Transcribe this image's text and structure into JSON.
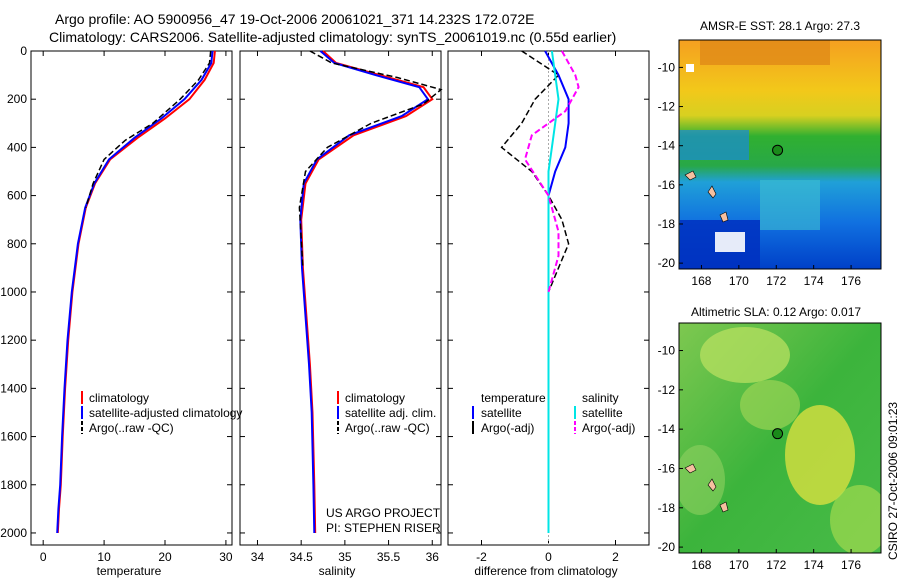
{
  "header": {
    "line1": "Argo profile: AO 5900956_47 19-Oct-2006 20061021_371 14.232S 172.072E",
    "line2": "Climatology: CARS2006. Satellite-adjusted climatology: synTS_20061019.nc (0.55d earlier)"
  },
  "credit": "CSIRO 27-Oct-2006 09:01:23",
  "project": {
    "line1": "US ARGO PROJECT",
    "line2": "PI: STEPHEN RISER"
  },
  "colors": {
    "climatology": "#ff0000",
    "satellite": "#0000ff",
    "argo": "#000000",
    "salinity_satellite": "#00e5e5",
    "salinity_argo": "#ff00ff",
    "map_marker": "#1a8a1a"
  },
  "chart_data": [
    {
      "id": "temperature",
      "type": "line",
      "xlabel": "temperature",
      "ylabel": "",
      "xlim": [
        -2,
        31
      ],
      "ylim": [
        2050,
        0
      ],
      "xticks": [
        0,
        10,
        20,
        30
      ],
      "yticks": [
        0,
        200,
        400,
        600,
        800,
        1000,
        1200,
        1400,
        1600,
        1800,
        2000
      ],
      "legend": [
        "climatology",
        "satellite-adjusted climatology",
        "Argo(..raw -QC)"
      ],
      "series": [
        {
          "name": "climatology",
          "x": [
            28.2,
            28.0,
            26.5,
            24.0,
            20.0,
            15.5,
            11.0,
            8.5,
            7.0,
            5.8,
            4.8,
            4.1,
            3.6,
            3.2,
            2.9,
            2.6,
            2.4
          ],
          "y": [
            0,
            50,
            120,
            200,
            280,
            360,
            450,
            550,
            650,
            800,
            1000,
            1200,
            1400,
            1600,
            1800,
            1900,
            2000
          ]
        },
        {
          "name": "satellite-adjusted climatology",
          "x": [
            27.8,
            27.6,
            26.0,
            23.2,
            19.4,
            15.0,
            10.8,
            8.4,
            6.9,
            5.7,
            4.7,
            4.0,
            3.5,
            3.1,
            2.8,
            2.5,
            2.3
          ],
          "y": [
            0,
            50,
            120,
            200,
            280,
            360,
            450,
            550,
            650,
            800,
            1000,
            1200,
            1400,
            1600,
            1800,
            1900,
            2000
          ]
        },
        {
          "name": "Argo(..raw -QC)",
          "x": [
            27.5,
            27.3,
            25.5,
            22.5,
            18.0,
            13.5,
            10.0,
            8.2,
            7.0
          ],
          "y": [
            0,
            50,
            120,
            200,
            300,
            370,
            450,
            550,
            650
          ]
        }
      ]
    },
    {
      "id": "salinity",
      "type": "line",
      "xlabel": "salinity",
      "ylabel": "",
      "xlim": [
        33.8,
        36.1
      ],
      "ylim": [
        2050,
        0
      ],
      "xticks": [
        34,
        34.5,
        35,
        35.5,
        36
      ],
      "legend": [
        "climatology",
        "satellite adj. clim.",
        "Argo(..raw -QC)"
      ],
      "series": [
        {
          "name": "climatology",
          "x": [
            34.75,
            34.9,
            35.4,
            35.9,
            36.0,
            35.7,
            35.1,
            34.7,
            34.55,
            34.5,
            34.52,
            34.56,
            34.6,
            34.63,
            34.65,
            34.66
          ],
          "y": [
            0,
            50,
            100,
            150,
            200,
            270,
            350,
            450,
            550,
            700,
            900,
            1100,
            1300,
            1500,
            1800,
            2000
          ]
        },
        {
          "name": "satellite adj. clim.",
          "x": [
            34.72,
            34.88,
            35.35,
            35.85,
            35.95,
            35.65,
            35.05,
            34.68,
            34.53,
            34.49,
            34.51,
            34.55,
            34.59,
            34.62,
            34.64,
            34.65
          ],
          "y": [
            0,
            50,
            100,
            150,
            200,
            270,
            350,
            450,
            550,
            700,
            900,
            1100,
            1300,
            1500,
            1800,
            2000
          ]
        },
        {
          "name": "Argo(..raw -QC)",
          "x": [
            34.6,
            34.85,
            35.6,
            36.1,
            35.9,
            35.3,
            34.8,
            34.55,
            34.48,
            34.52
          ],
          "y": [
            0,
            50,
            110,
            160,
            220,
            300,
            400,
            500,
            650,
            900
          ]
        }
      ]
    },
    {
      "id": "difference",
      "type": "line",
      "xlabel": "difference from climatology",
      "ylabel": "",
      "xlim": [
        -3,
        3
      ],
      "ylim": [
        2050,
        0
      ],
      "xticks": [
        -2,
        0,
        2
      ],
      "legend_temperature": {
        "title": "temperature",
        "items": [
          "satellite",
          "Argo(-adj)"
        ]
      },
      "legend_salinity": {
        "title": "salinity",
        "items": [
          "satellite",
          "Argo(-adj)"
        ]
      },
      "series": [
        {
          "name": "temperature satellite",
          "x": [
            -0.1,
            0.3,
            0.6,
            0.6,
            0.5,
            0.2,
            0.0,
            0.0,
            0.0,
            0.0
          ],
          "y": [
            0,
            100,
            200,
            300,
            400,
            500,
            600,
            800,
            1200,
            2000
          ]
        },
        {
          "name": "temperature Argo(-adj)",
          "x": [
            -0.8,
            0.3,
            -0.4,
            -0.8,
            -1.4,
            -0.5,
            0.0,
            0.4,
            0.6,
            0.3,
            0.0
          ],
          "y": [
            0,
            100,
            200,
            300,
            400,
            500,
            600,
            700,
            800,
            900,
            1000
          ]
        },
        {
          "name": "salinity satellite",
          "x": [
            0.1,
            0.2,
            0.3,
            0.2,
            0.1,
            0.0,
            0.0,
            0.0
          ],
          "y": [
            0,
            100,
            200,
            300,
            400,
            500,
            800,
            2000
          ]
        },
        {
          "name": "salinity Argo(-adj)",
          "x": [
            0.4,
            0.8,
            0.9,
            0.5,
            -0.5,
            -0.7,
            0.0,
            0.3,
            0.3,
            0.0
          ],
          "y": [
            0,
            100,
            150,
            250,
            350,
            450,
            600,
            750,
            850,
            1000
          ]
        }
      ]
    }
  ],
  "maps": [
    {
      "title": "AMSR-E SST: 28.1 Argo: 27.3",
      "xticks": [
        168,
        170,
        172,
        174,
        176
      ],
      "yticks": [
        -10,
        -12,
        -14,
        -16,
        -18,
        -20
      ],
      "marker": [
        172.07,
        -14.23
      ]
    },
    {
      "title": "Altimetric SLA: 0.12 Argo: 0.017",
      "xticks": [
        168,
        170,
        172,
        174,
        176
      ],
      "yticks": [
        -10,
        -12,
        -14,
        -16,
        -18,
        -20
      ],
      "marker": [
        172.07,
        -14.23
      ]
    }
  ]
}
